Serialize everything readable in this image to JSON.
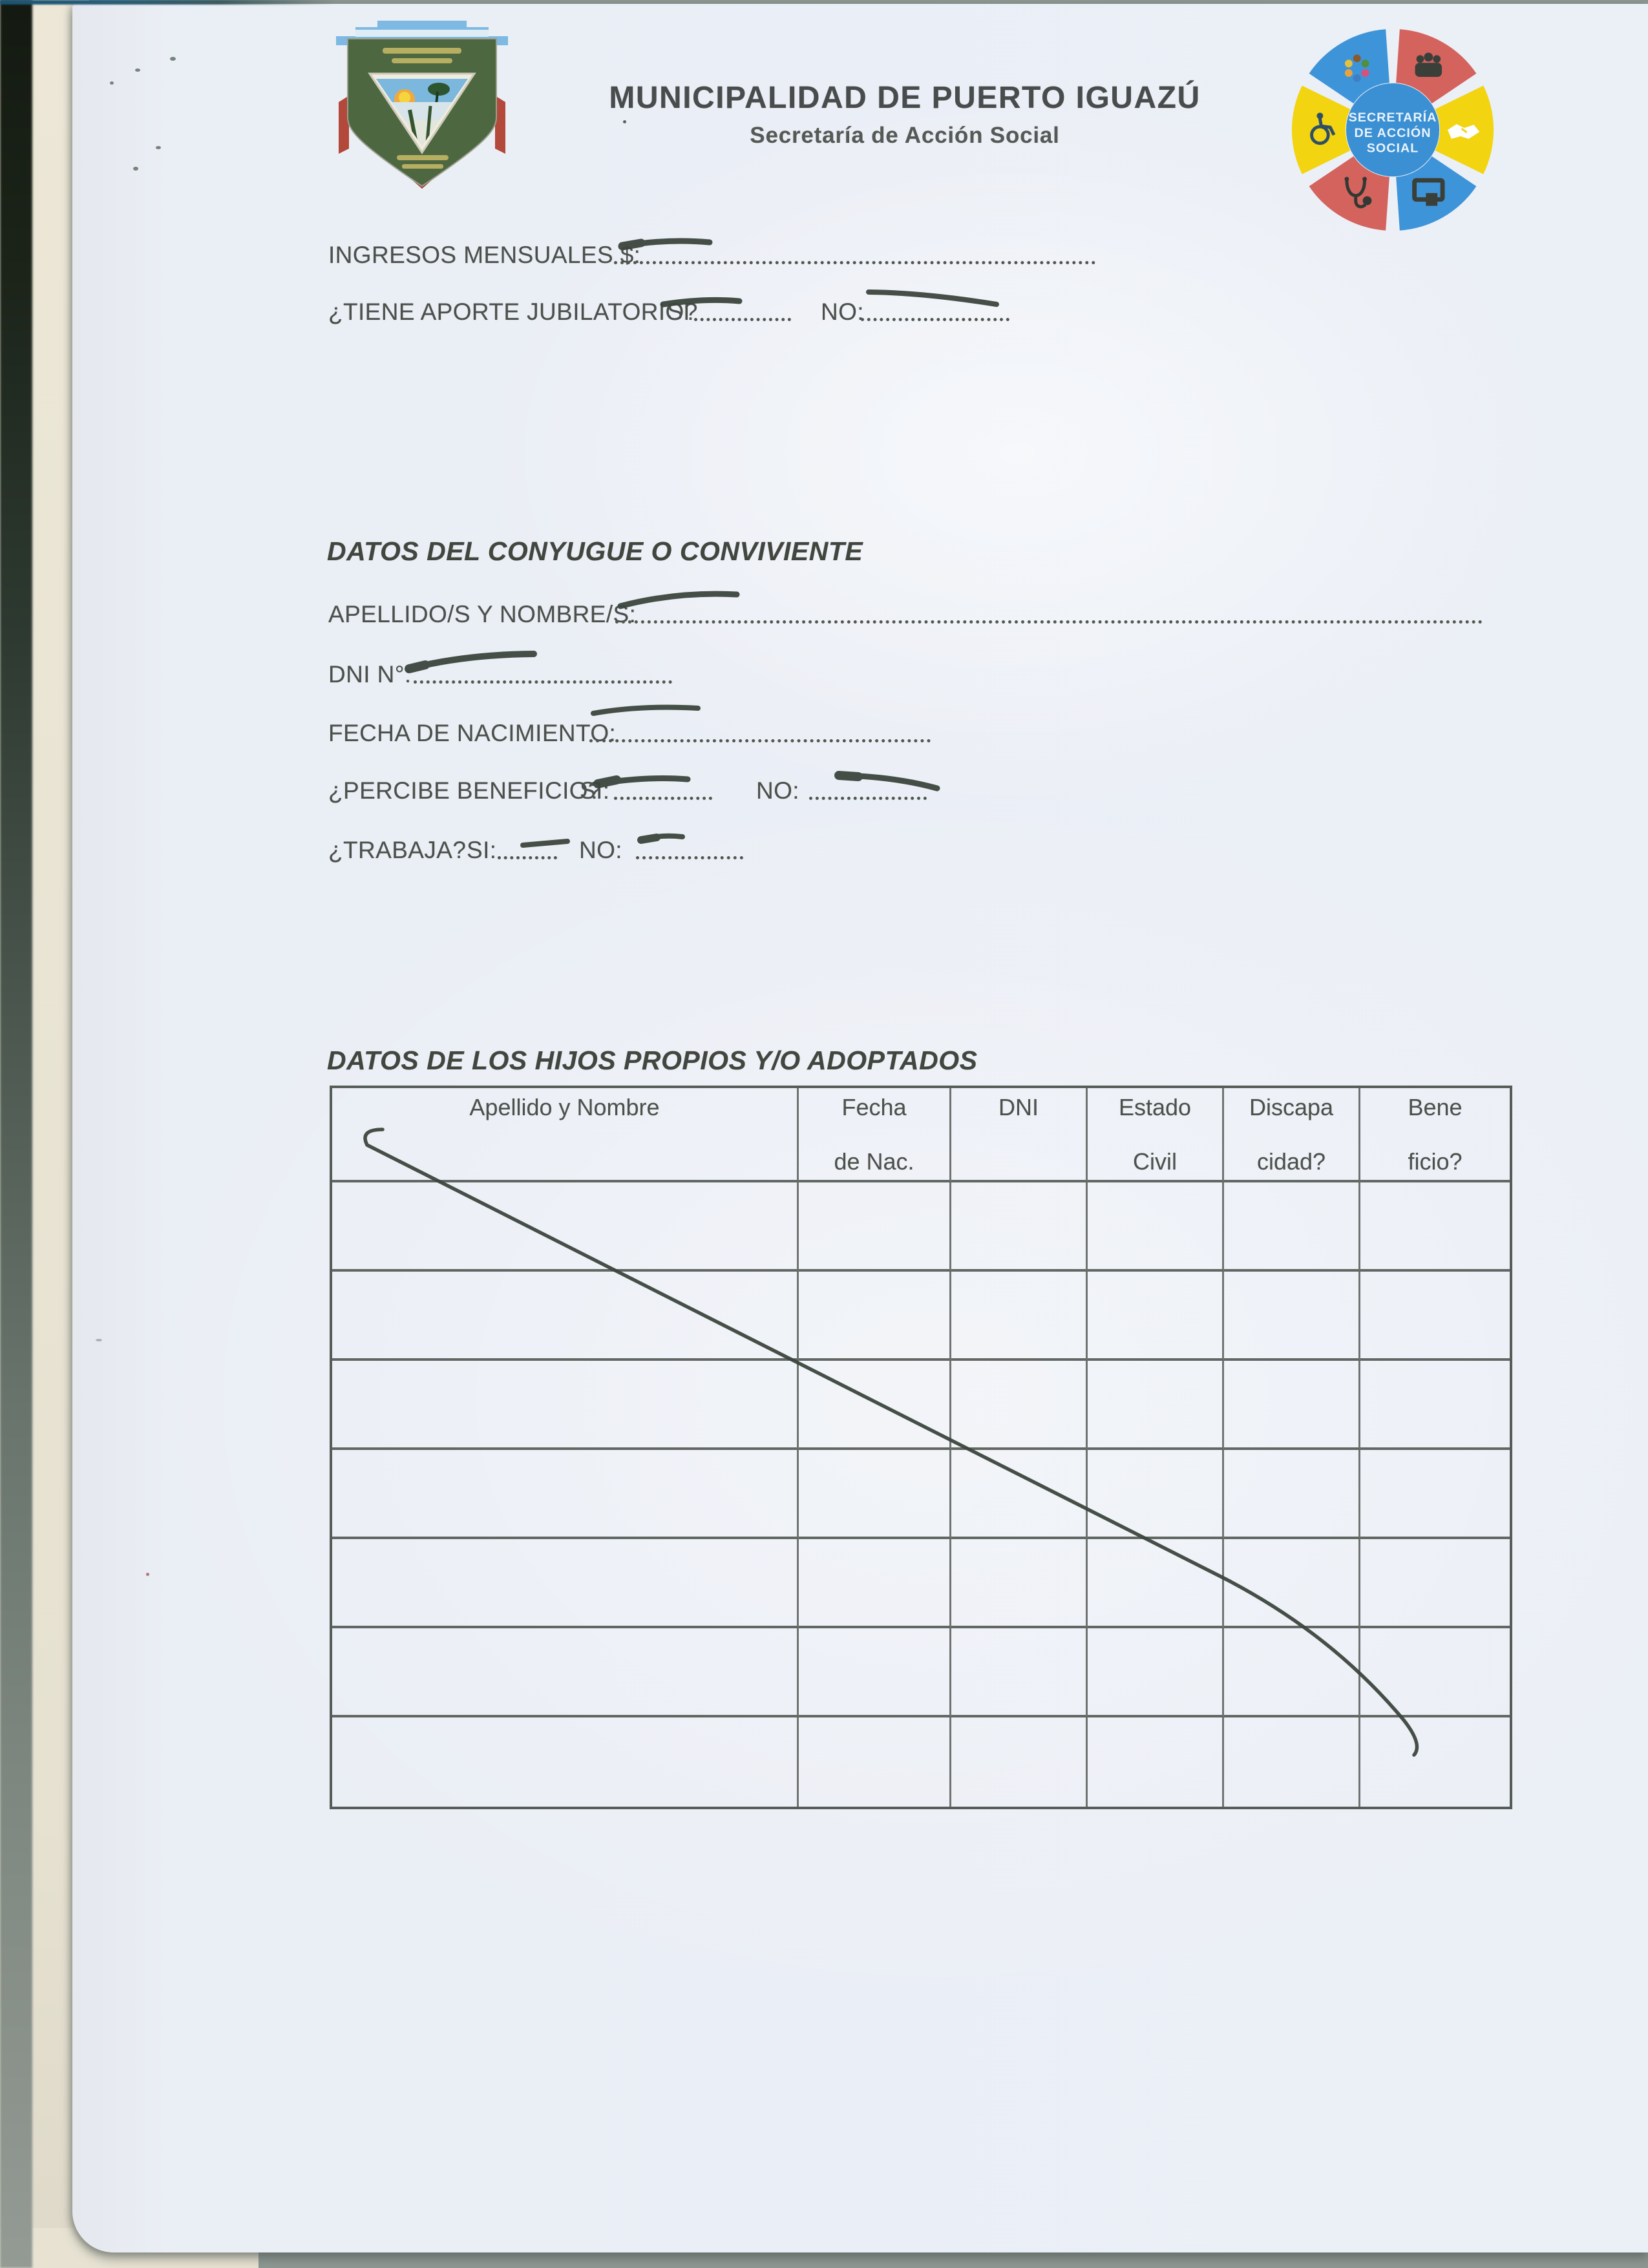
{
  "header": {
    "title": "MUNICIPALIDAD DE PUERTO IGUAZÚ",
    "subtitle": "Secretaría de Acción Social",
    "seal": {
      "line1": "SECRETARÍA",
      "line2": "DE ACCIÓN",
      "line3": "SOCIAL"
    }
  },
  "form": {
    "income_label": "INGRESOS MENSUALES $:",
    "pension_label": "¿TIENE APORTE JUBILATORIO?",
    "pension_yes": "SI",
    "pension_no": "NO:",
    "spouse_heading": "DATOS DEL CONYUGUE O CONVIVIENTE",
    "name_label": "APELLIDO/S Y NOMBRE/S:",
    "dni_label": "DNI N°:",
    "birth_label": "FECHA DE NACIMIENTO:",
    "benefit_label": "¿PERCIBE BENEFICIO?",
    "benefit_yes": "SI:",
    "benefit_no": "NO:",
    "works_label": "¿TRABAJA?",
    "works_yes": "SI:",
    "works_no": "NO:"
  },
  "children": {
    "heading": "DATOS DE LOS HIJOS PROPIOS Y/O ADOPTADOS",
    "columns": [
      {
        "line1": "Apellido y Nombre",
        "line2": ""
      },
      {
        "line1": "Fecha",
        "line2": "de Nac."
      },
      {
        "line1": "DNI",
        "line2": ""
      },
      {
        "line1": "Estado",
        "line2": "Civil"
      },
      {
        "line1": "Discapa",
        "line2": "cidad?"
      },
      {
        "line1": "Bene",
        "line2": "ficio?"
      }
    ],
    "empty_row_count": 7
  }
}
